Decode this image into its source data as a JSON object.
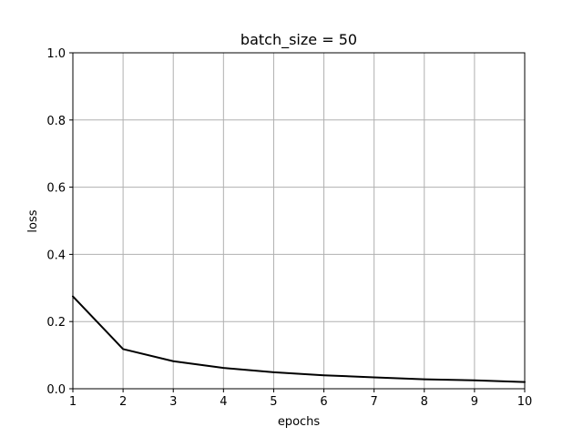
{
  "chart_data": {
    "type": "line",
    "title": "batch_size = 50",
    "xlabel": "epochs",
    "ylabel": "loss",
    "xlim": [
      1,
      10
    ],
    "ylim": [
      0.0,
      1.0
    ],
    "xticks": [
      "1",
      "2",
      "3",
      "4",
      "5",
      "6",
      "7",
      "8",
      "9",
      "10"
    ],
    "yticks": [
      "0.0",
      "0.2",
      "0.4",
      "0.6",
      "0.8",
      "1.0"
    ],
    "grid": true,
    "line_color": "#000000",
    "x": [
      1,
      2,
      3,
      4,
      5,
      6,
      7,
      8,
      9,
      10
    ],
    "series": [
      {
        "values": [
          0.275,
          0.118,
          0.082,
          0.062,
          0.049,
          0.04,
          0.034,
          0.028,
          0.025,
          0.02
        ]
      }
    ]
  }
}
